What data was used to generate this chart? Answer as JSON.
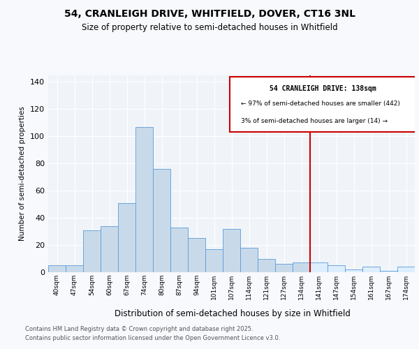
{
  "title": "54, CRANLEIGH DRIVE, WHITFIELD, DOVER, CT16 3NL",
  "subtitle": "Size of property relative to semi-detached houses in Whitfield",
  "xlabel": "Distribution of semi-detached houses by size in Whitfield",
  "ylabel": "Number of semi-detached properties",
  "bar_color": "#c8daea",
  "bar_edge_color": "#5b9bd5",
  "bar_color_right": "#ddeeff",
  "categories": [
    "40sqm",
    "47sqm",
    "54sqm",
    "60sqm",
    "67sqm",
    "74sqm",
    "80sqm",
    "87sqm",
    "94sqm",
    "101sqm",
    "107sqm",
    "114sqm",
    "121sqm",
    "127sqm",
    "134sqm",
    "141sqm",
    "147sqm",
    "154sqm",
    "161sqm",
    "167sqm",
    "174sqm"
  ],
  "values": [
    5,
    5,
    31,
    34,
    51,
    107,
    76,
    33,
    25,
    17,
    32,
    18,
    10,
    6,
    7,
    7,
    5,
    2,
    4,
    1,
    4
  ],
  "marker_bin_index": 15,
  "marker_line_color": "#cc0000",
  "annotation_title": "54 CRANLEIGH DRIVE: 138sqm",
  "annotation_line1": "← 97% of semi-detached houses are smaller (442)",
  "annotation_line2": "3% of semi-detached houses are larger (14) →",
  "annotation_box_color": "#cc0000",
  "ylim": [
    0,
    145
  ],
  "yticks": [
    0,
    20,
    40,
    60,
    80,
    100,
    120,
    140
  ],
  "footer_line1": "Contains HM Land Registry data © Crown copyright and database right 2025.",
  "footer_line2": "Contains public sector information licensed under the Open Government Licence v3.0.",
  "bg_color": "#f7f9fc",
  "plot_bg_color": "#f0f4f9"
}
